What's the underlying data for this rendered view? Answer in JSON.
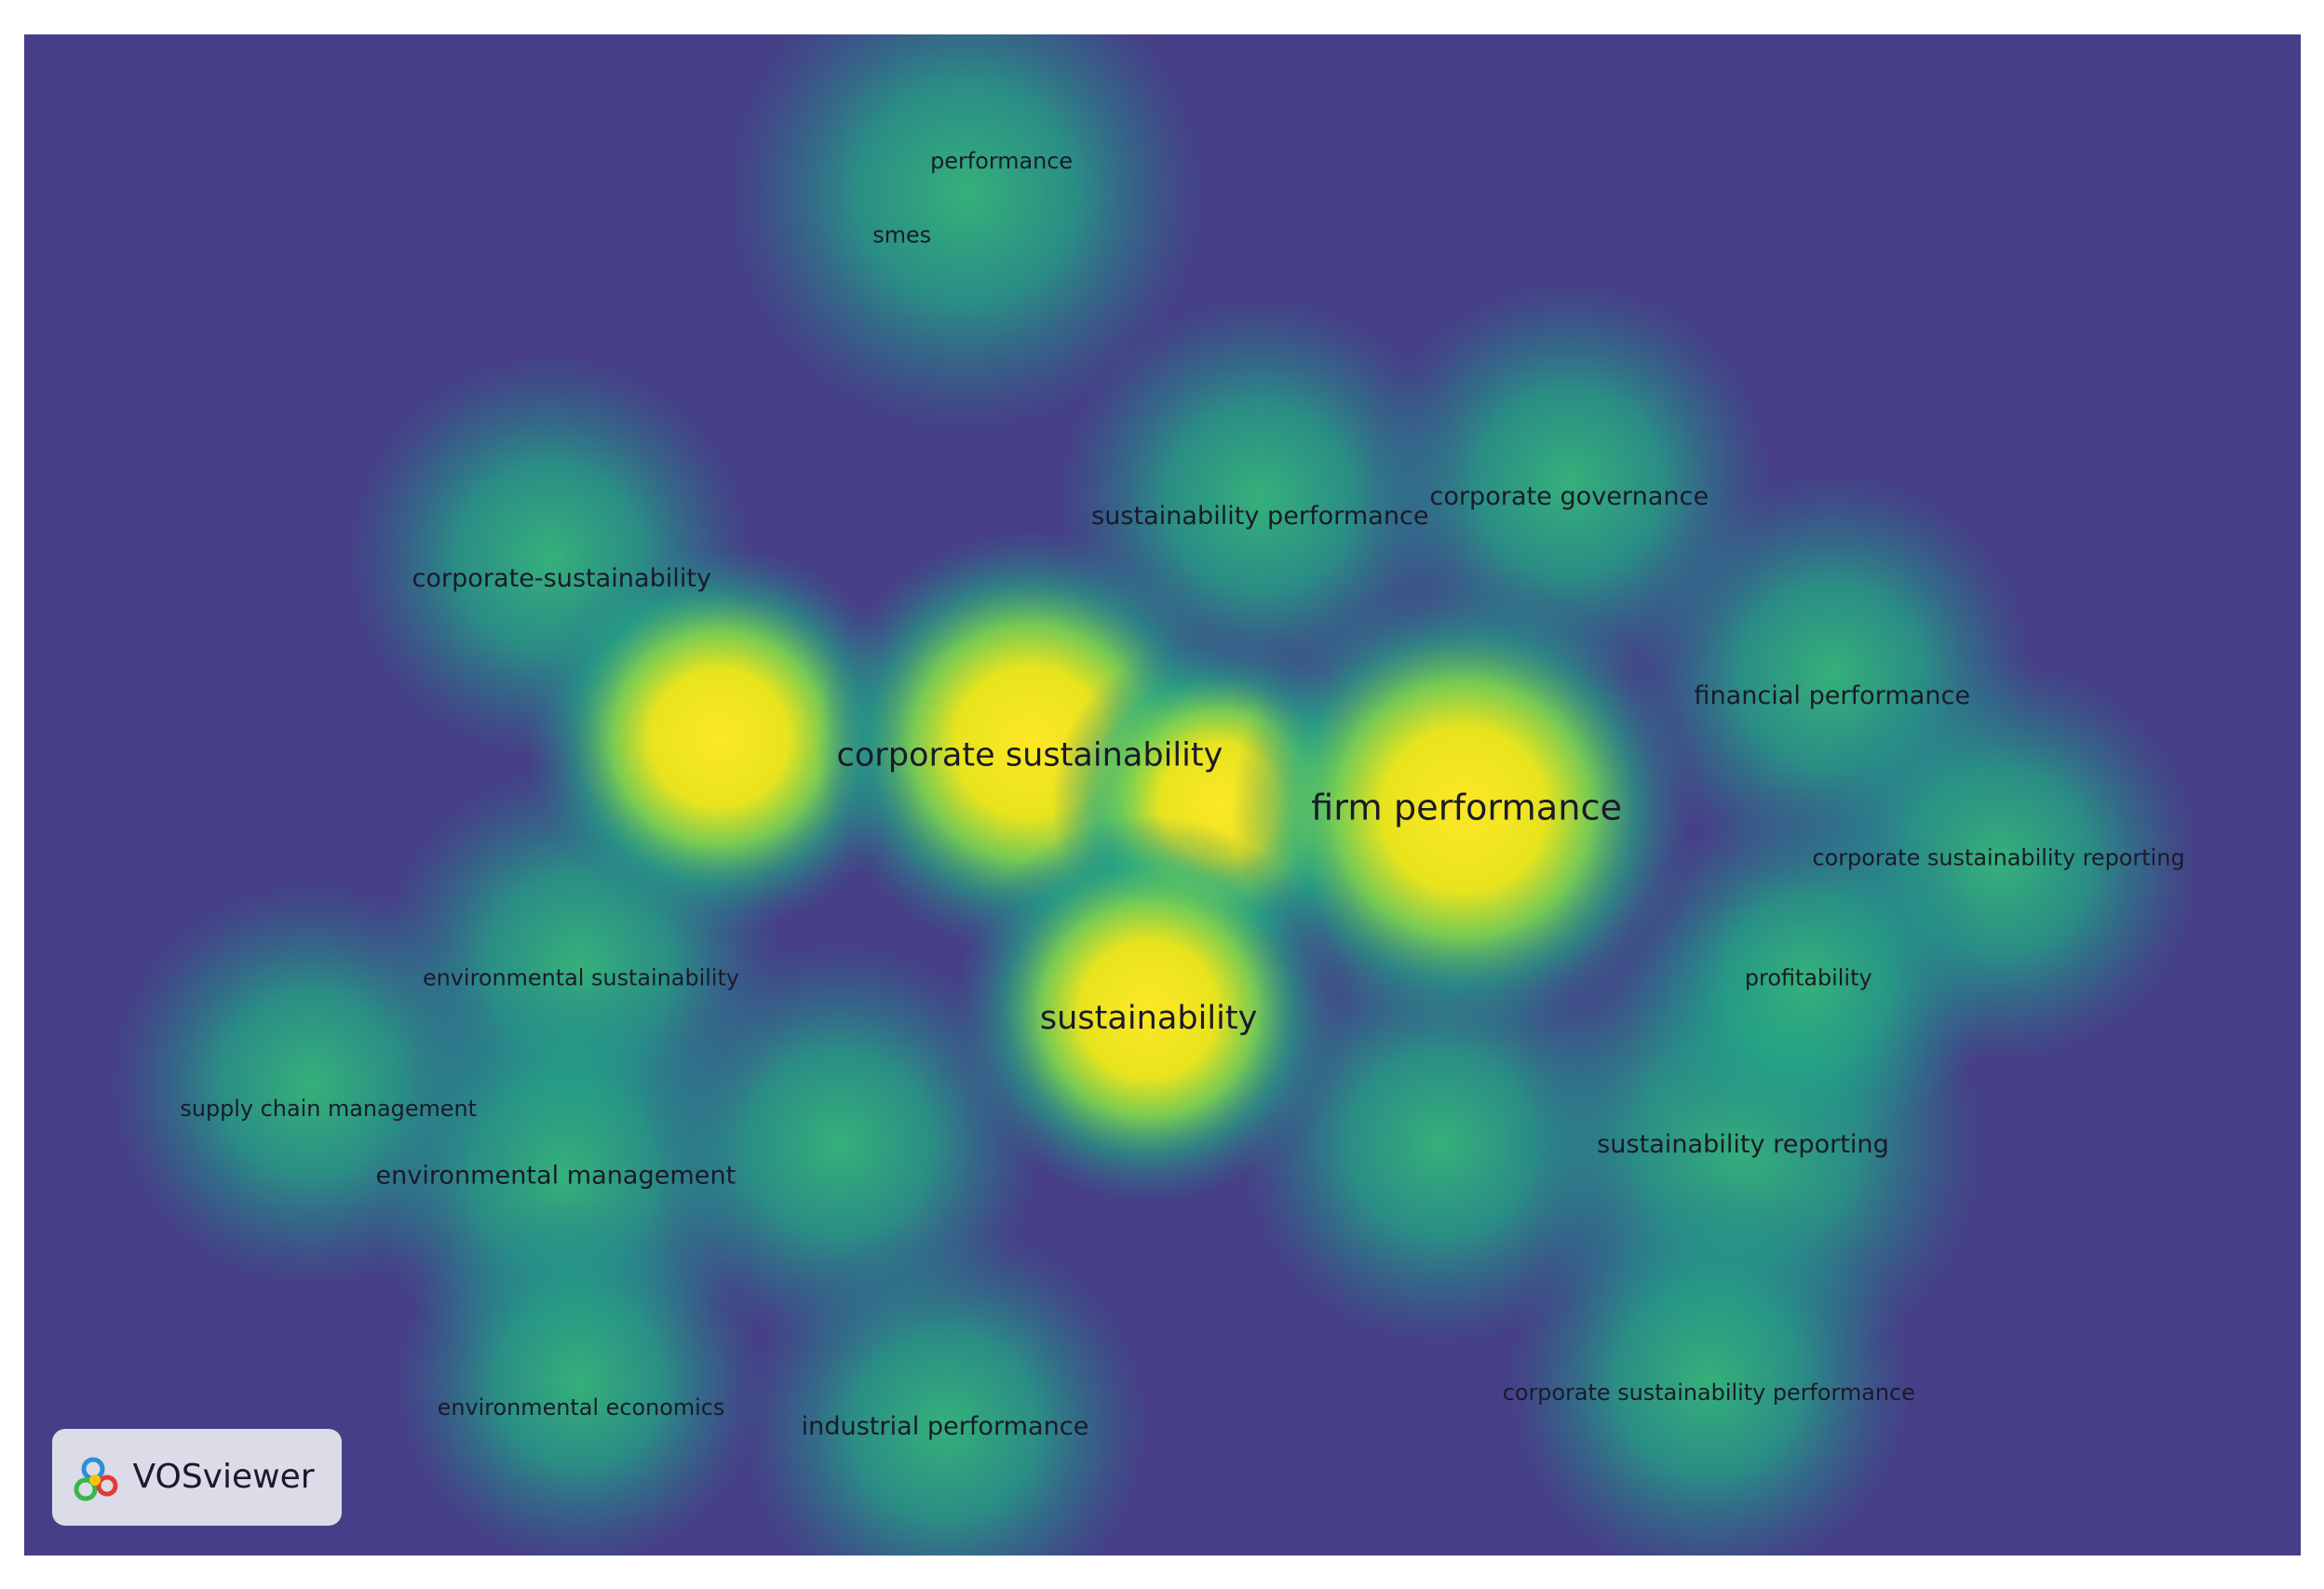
{
  "nodes": [
    {
      "label": "performance"
    },
    {
      "label": "smes"
    },
    {
      "label": "sustainability performance"
    },
    {
      "label": "corporate governance"
    },
    {
      "label": "corporate-sustainability"
    },
    {
      "label": "financial performance"
    },
    {
      "label": "corporate sustainability"
    },
    {
      "label": "firm performance"
    },
    {
      "label": "corporate sustainability reporting"
    },
    {
      "label": "environmental sustainability"
    },
    {
      "label": "profitability"
    },
    {
      "label": "sustainability"
    },
    {
      "label": "supply chain management"
    },
    {
      "label": "environmental management"
    },
    {
      "label": "sustainability reporting"
    },
    {
      "label": "environmental economics"
    },
    {
      "label": "industrial performance"
    },
    {
      "label": "corporate sustainability performance"
    }
  ],
  "logo": {
    "text": "VOSviewer"
  }
}
